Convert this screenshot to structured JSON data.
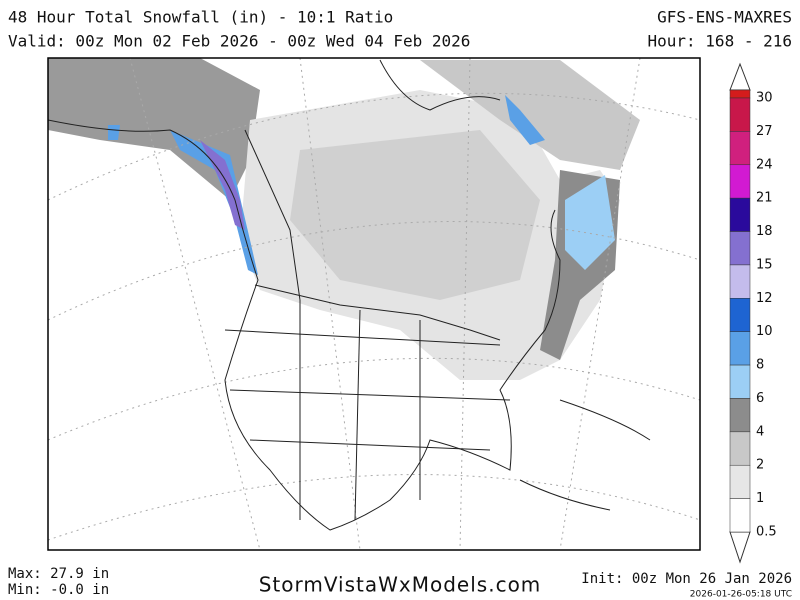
{
  "header": {
    "title": "48 Hour Total Snowfall (in) - 10:1 Ratio",
    "valid": "Valid: 00z Mon 02 Feb 2026 - 00z Wed 04 Feb 2026",
    "model": "GFS-ENS-MAXRES",
    "hour": "Hour: 168 - 216"
  },
  "colorbar": {
    "levels": [
      {
        "label": "30",
        "color": "#d41c1c"
      },
      {
        "label": "27",
        "color": "#c8174a"
      },
      {
        "label": "24",
        "color": "#d0207e"
      },
      {
        "label": "21",
        "color": "#d21ad2"
      },
      {
        "label": "18",
        "color": "#2a0a9c"
      },
      {
        "label": "15",
        "color": "#8470d0"
      },
      {
        "label": "12",
        "color": "#c4bcec"
      },
      {
        "label": "10",
        "color": "#1e64d2"
      },
      {
        "label": "8",
        "color": "#5aa0e6"
      },
      {
        "label": "6",
        "color": "#9ccff5"
      },
      {
        "label": "4",
        "color": "#8c8c8c"
      },
      {
        "label": "2",
        "color": "#c8c8c8"
      },
      {
        "label": "1",
        "color": "#e6e6e6"
      },
      {
        "label": "0.5",
        "color": "#ffffff"
      }
    ]
  },
  "footer": {
    "max": "Max: 27.9 in",
    "min": "Min: -0.0 in",
    "site": "StormVistaWxModels.com",
    "init": "Init: 00z Mon 26 Jan 2026",
    "stamp": "2026-01-26-05:18 UTC"
  }
}
